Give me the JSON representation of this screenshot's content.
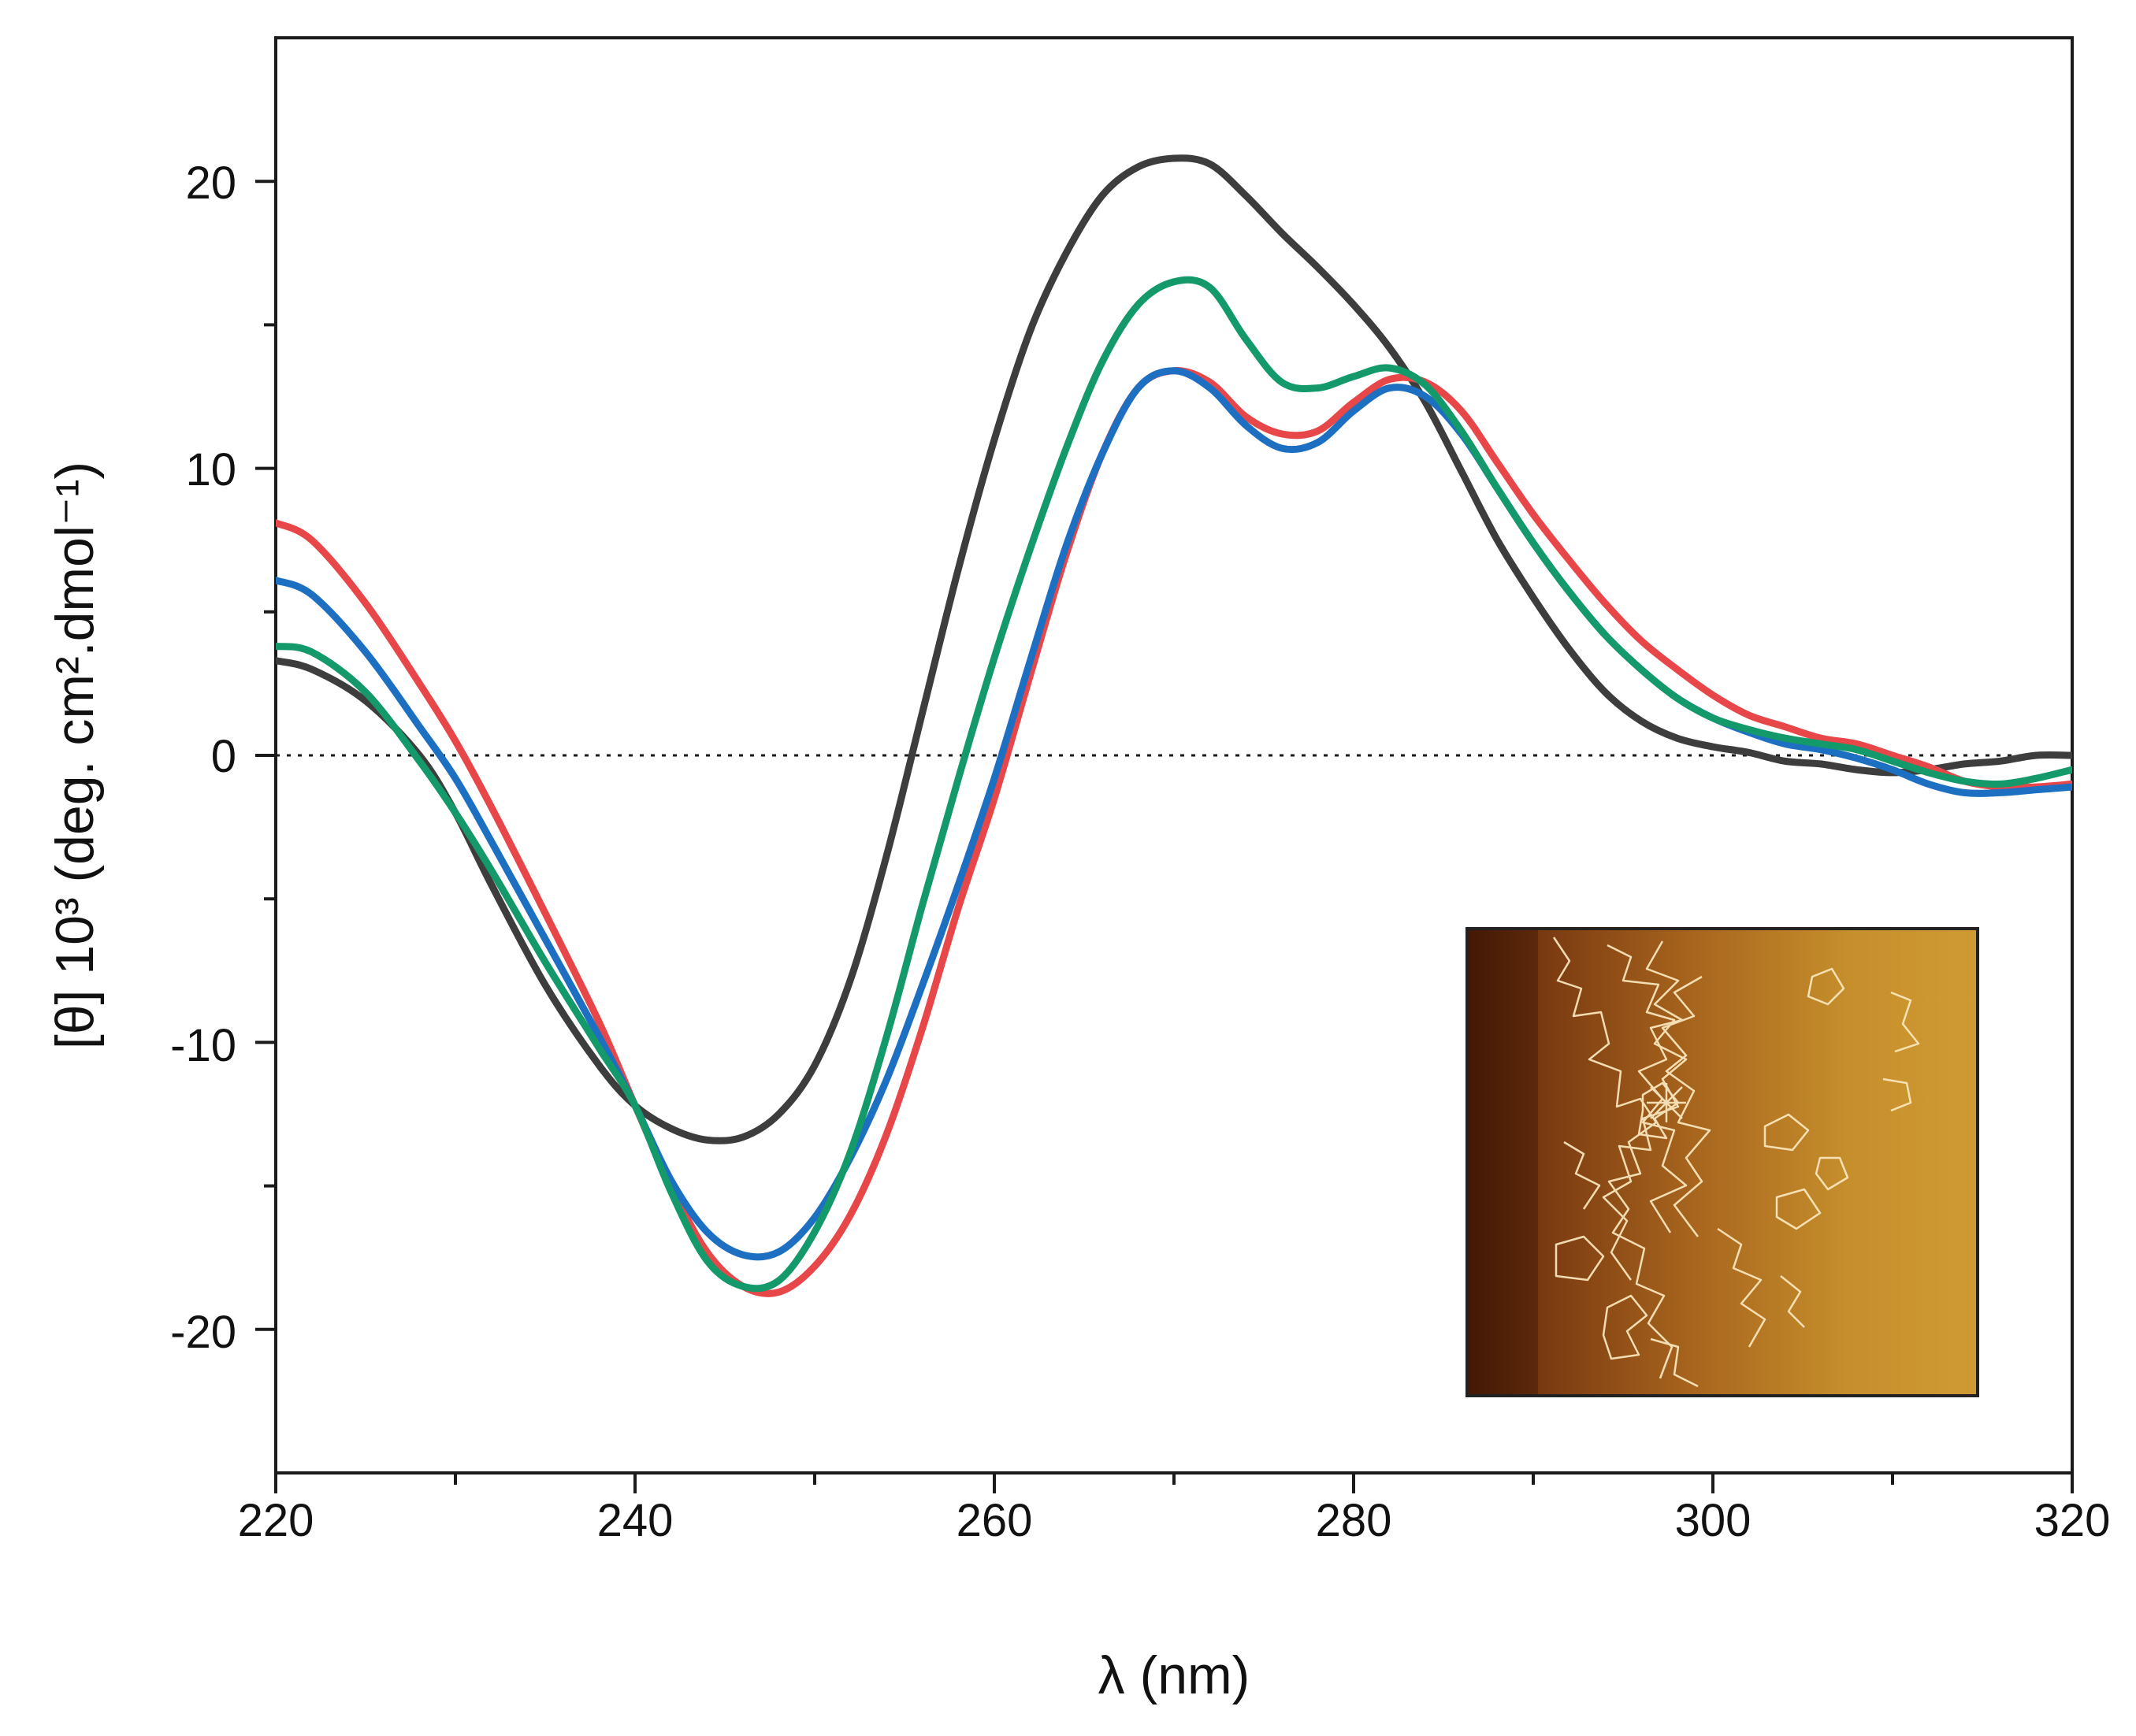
{
  "chart_data": {
    "type": "line",
    "title": "",
    "xlabel": "λ (nm)",
    "ylabel": "[θ] 10³ (deg. cm².dmol⁻¹)",
    "xlim": [
      220,
      320
    ],
    "ylim": [
      -25,
      25
    ],
    "x_ticks": [
      220,
      240,
      260,
      280,
      300,
      320
    ],
    "x_minor_ticks": [
      230,
      250,
      270,
      290,
      310
    ],
    "y_ticks": [
      -20,
      -10,
      0,
      10,
      20
    ],
    "y_minor_ticks": [
      -15,
      -5,
      5,
      15
    ],
    "x_tick_labels": [
      "220",
      "240",
      "260",
      "280",
      "300",
      "320"
    ],
    "y_tick_labels": [
      "-20",
      "-10",
      "0",
      "10",
      "20"
    ],
    "reference_line": {
      "y": 0,
      "style": "dotted"
    },
    "grid": false,
    "legend": "none",
    "inset": "AFM image of DNA molecules (lower right)",
    "series": [
      {
        "name": "gray",
        "color": "#3d3d3d",
        "x": [
          220,
          222,
          225,
          228,
          230,
          232,
          235,
          238,
          240,
          242,
          244,
          246,
          248,
          250,
          252,
          254,
          256,
          258,
          260,
          262,
          264,
          266,
          268,
          270,
          272,
          274,
          276,
          278,
          280,
          282,
          284,
          286,
          288,
          290,
          292,
          294,
          296,
          298,
          300,
          302,
          304,
          306,
          308,
          310,
          312,
          314,
          316,
          318,
          320
        ],
        "y": [
          3.3,
          3.0,
          1.9,
          0.0,
          -2.0,
          -4.5,
          -8.0,
          -10.8,
          -12.2,
          -13.0,
          -13.4,
          -13.3,
          -12.5,
          -10.8,
          -7.8,
          -3.5,
          1.5,
          6.5,
          11.0,
          14.8,
          17.5,
          19.5,
          20.5,
          20.8,
          20.6,
          19.5,
          18.2,
          17.0,
          15.7,
          14.2,
          12.3,
          9.9,
          7.5,
          5.5,
          3.7,
          2.2,
          1.2,
          0.6,
          0.3,
          0.1,
          -0.2,
          -0.3,
          -0.5,
          -0.6,
          -0.5,
          -0.3,
          -0.2,
          0.0,
          0.0
        ]
      },
      {
        "name": "red",
        "color": "#e8474a",
        "x": [
          220,
          222,
          225,
          228,
          230,
          232,
          235,
          238,
          240,
          242,
          244,
          246,
          248,
          250,
          252,
          254,
          256,
          258,
          260,
          262,
          264,
          266,
          268,
          270,
          272,
          274,
          276,
          278,
          280,
          282,
          284,
          286,
          288,
          290,
          292,
          294,
          296,
          298,
          300,
          302,
          304,
          306,
          308,
          310,
          312,
          314,
          316,
          318,
          320
        ],
        "y": [
          8.1,
          7.5,
          5.3,
          2.5,
          0.5,
          -1.8,
          -5.5,
          -9.3,
          -12.2,
          -15.0,
          -17.3,
          -18.5,
          -18.7,
          -17.8,
          -16.0,
          -13.2,
          -9.5,
          -5.3,
          -1.5,
          2.8,
          7.0,
          10.5,
          12.8,
          13.4,
          13.0,
          11.8,
          11.2,
          11.3,
          12.3,
          13.1,
          13.0,
          12.0,
          10.2,
          8.4,
          6.8,
          5.3,
          4.0,
          3.0,
          2.1,
          1.4,
          1.0,
          0.6,
          0.4,
          0.0,
          -0.4,
          -0.9,
          -1.1,
          -1.1,
          -1.0
        ]
      },
      {
        "name": "blue",
        "color": "#1d6fc2",
        "x": [
          220,
          222,
          225,
          228,
          230,
          232,
          235,
          238,
          240,
          242,
          244,
          246,
          248,
          250,
          252,
          254,
          256,
          258,
          260,
          262,
          264,
          266,
          268,
          270,
          272,
          274,
          276,
          278,
          280,
          282,
          284,
          286,
          288,
          290,
          292,
          294,
          296,
          298,
          300,
          302,
          304,
          306,
          308,
          310,
          312,
          314,
          316,
          318,
          320
        ],
        "y": [
          6.1,
          5.6,
          3.6,
          1.0,
          -0.8,
          -3.0,
          -6.4,
          -9.8,
          -12.2,
          -14.8,
          -16.6,
          -17.4,
          -17.3,
          -16.1,
          -14.0,
          -11.3,
          -8.0,
          -4.5,
          -0.8,
          3.3,
          7.3,
          10.5,
          12.8,
          13.4,
          12.8,
          11.5,
          10.7,
          10.9,
          12.0,
          12.8,
          12.5,
          11.2,
          9.3,
          7.4,
          5.7,
          4.2,
          3.0,
          2.0,
          1.3,
          0.8,
          0.4,
          0.2,
          -0.1,
          -0.5,
          -1.0,
          -1.3,
          -1.3,
          -1.2,
          -1.1
        ]
      },
      {
        "name": "green",
        "color": "#13996a",
        "x": [
          220,
          222,
          225,
          228,
          230,
          232,
          235,
          238,
          240,
          242,
          244,
          246,
          248,
          250,
          252,
          254,
          256,
          258,
          260,
          262,
          264,
          266,
          268,
          270,
          272,
          274,
          276,
          278,
          280,
          282,
          284,
          286,
          288,
          290,
          292,
          294,
          296,
          298,
          300,
          302,
          304,
          306,
          308,
          310,
          312,
          314,
          316,
          318,
          320
        ],
        "y": [
          3.8,
          3.6,
          2.2,
          -0.2,
          -2.0,
          -4.0,
          -7.2,
          -10.2,
          -12.2,
          -15.2,
          -17.6,
          -18.5,
          -18.3,
          -16.6,
          -13.8,
          -9.8,
          -5.2,
          -0.8,
          3.4,
          7.2,
          10.7,
          13.7,
          15.7,
          16.5,
          16.3,
          14.5,
          13.0,
          12.8,
          13.2,
          13.5,
          12.9,
          11.3,
          9.3,
          7.4,
          5.7,
          4.2,
          3.0,
          2.0,
          1.3,
          0.9,
          0.6,
          0.4,
          0.2,
          -0.2,
          -0.6,
          -0.9,
          -1.0,
          -0.8,
          -0.5
        ]
      }
    ]
  }
}
